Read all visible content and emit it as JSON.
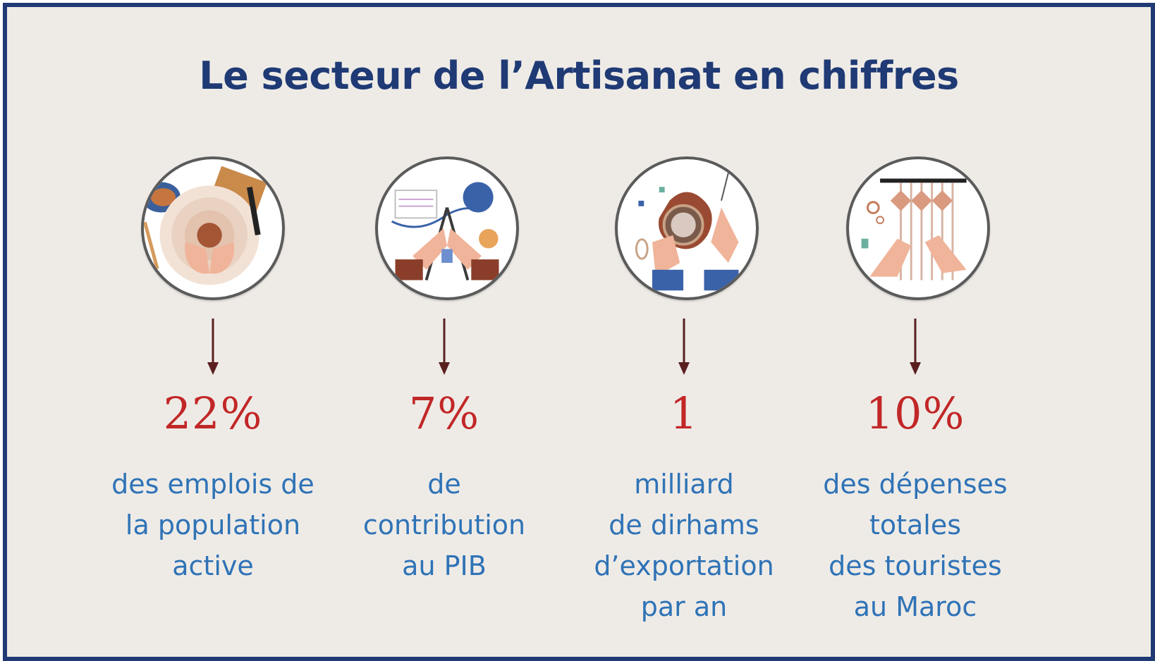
{
  "title": "Le secteur de l’Artisanat en chiffres",
  "colors": {
    "frame": "#1f3a74",
    "background": "#eeebe7",
    "title": "#1f3a74",
    "stat": "#c22727",
    "description": "#2f73b6",
    "arrow": "#5a1f1f"
  },
  "items": [
    {
      "icon": "pottery-icon",
      "value": "22%",
      "lines": [
        "des emplois de",
        "la population",
        "active"
      ]
    },
    {
      "icon": "knitting-icon",
      "value": "7%",
      "lines": [
        "de",
        "contribution",
        "au PIB"
      ]
    },
    {
      "icon": "embroidery-icon",
      "value": "1",
      "lines": [
        "milliard",
        "de dirhams",
        "d’exportation",
        "par an"
      ]
    },
    {
      "icon": "weaving-icon",
      "value": "10%",
      "lines": [
        "des dépenses",
        "totales",
        "des touristes",
        "au Maroc"
      ]
    }
  ]
}
